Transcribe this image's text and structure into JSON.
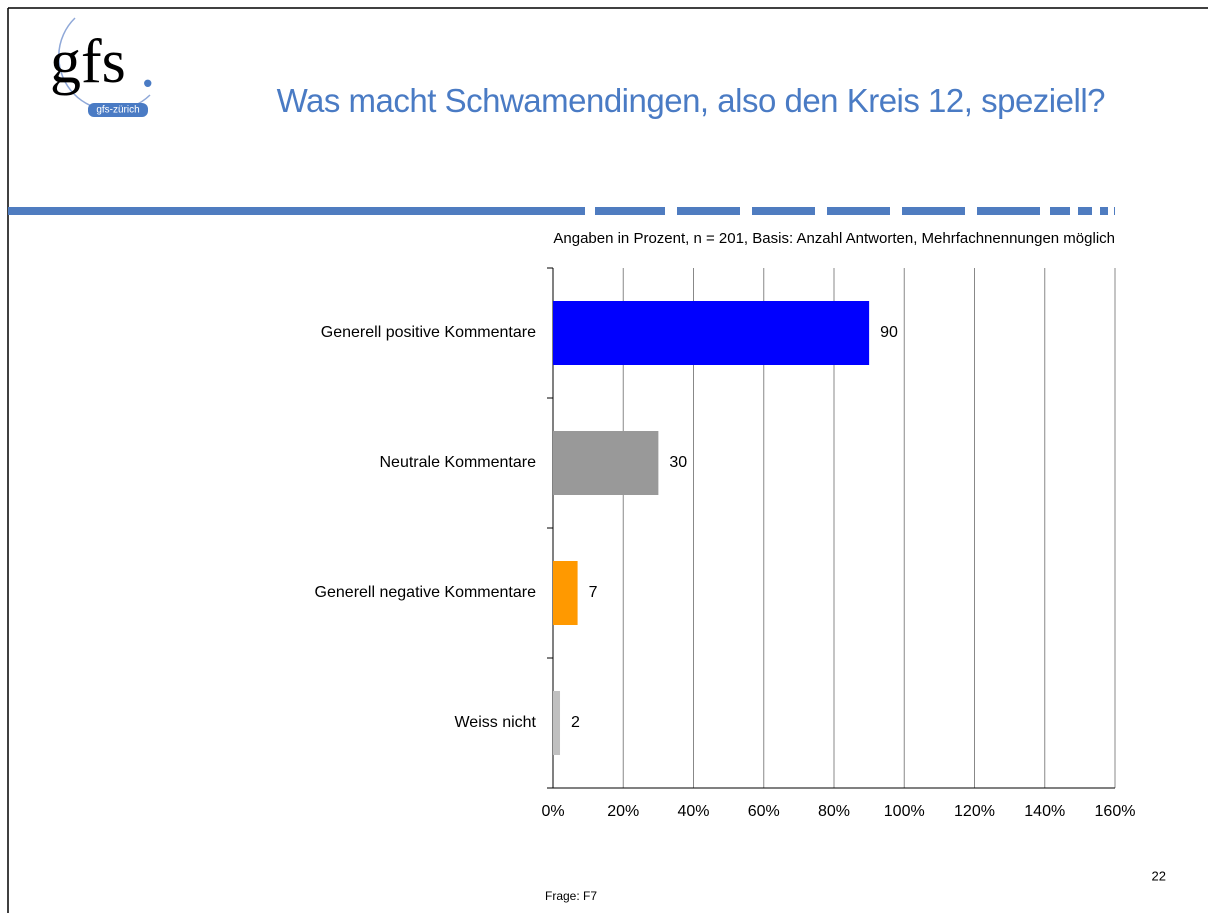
{
  "logo": {
    "text": "gfs",
    "dot": ".",
    "subtext": "gfs-zürich"
  },
  "chart_data": {
    "type": "hbar",
    "title": "Was macht Schwamendingen, also den Kreis 12, speziell?",
    "subtitle": "Angaben in Prozent, n = 201, Basis: Anzahl Antworten, Mehrfachnennungen möglich",
    "categories": [
      "Generell positive Kommentare",
      "Neutrale Kommentare",
      "Generell negative Kommentare",
      "Weiss nicht"
    ],
    "values": [
      90,
      30,
      7,
      2
    ],
    "colors": [
      "#0000ff",
      "#999999",
      "#ff9900",
      "#c0c0c0"
    ],
    "xlim": [
      0,
      160
    ],
    "xticks": [
      {
        "value": 0,
        "label": "0%"
      },
      {
        "value": 20,
        "label": "20%"
      },
      {
        "value": 40,
        "label": "40%"
      },
      {
        "value": 60,
        "label": "60%"
      },
      {
        "value": 80,
        "label": "80%"
      },
      {
        "value": 100,
        "label": "100%"
      },
      {
        "value": 120,
        "label": "120%"
      },
      {
        "value": 140,
        "label": "140%"
      },
      {
        "value": 160,
        "label": "160%"
      }
    ],
    "grid": true
  },
  "page_number": 22,
  "footer": "Frage: F7"
}
